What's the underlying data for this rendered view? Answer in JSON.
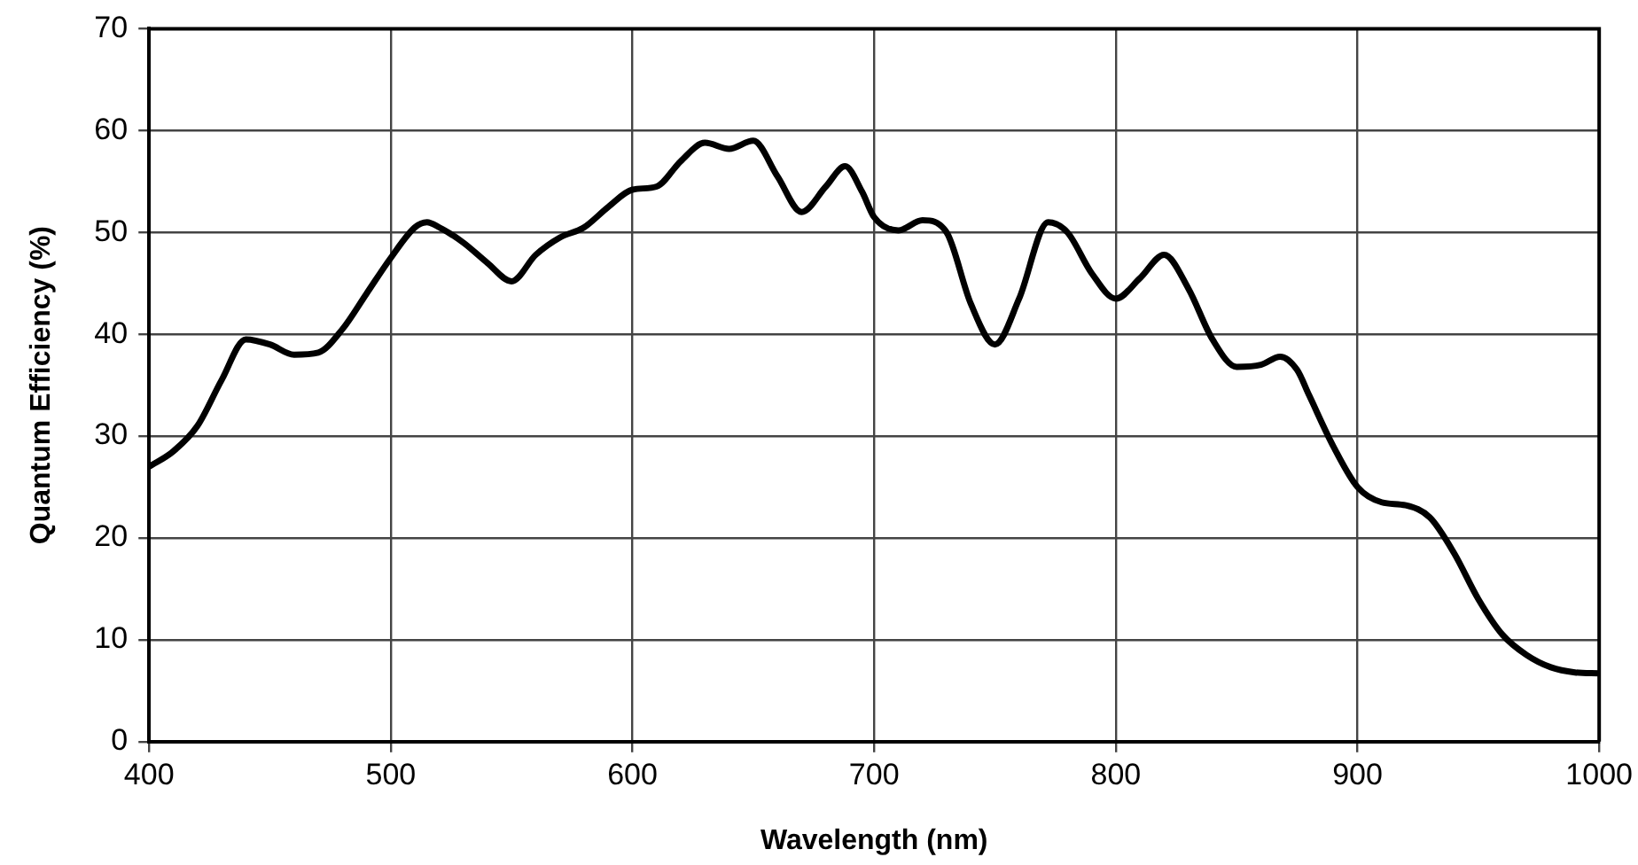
{
  "chart_data": {
    "type": "line",
    "xlabel": "Wavelength (nm)",
    "ylabel": "Quantum Efficiency (%)",
    "x": [
      400,
      410,
      420,
      430,
      440,
      450,
      460,
      470,
      480,
      490,
      500,
      510,
      515,
      520,
      530,
      540,
      550,
      560,
      570,
      580,
      590,
      600,
      610,
      620,
      630,
      640,
      650,
      660,
      670,
      680,
      688,
      695,
      700,
      710,
      720,
      730,
      740,
      750,
      760,
      772,
      780,
      790,
      800,
      810,
      820,
      830,
      840,
      850,
      860,
      868,
      875,
      880,
      890,
      900,
      910,
      920,
      930,
      940,
      950,
      960,
      970,
      980,
      990,
      1000
    ],
    "series": [
      {
        "color": "#000000",
        "values": [
          27,
          28.5,
          31,
          35.5,
          39.5,
          39,
          38,
          38.2,
          40.5,
          44,
          47.5,
          50.5,
          51,
          50.5,
          49,
          47,
          45.2,
          47.8,
          49.5,
          50.5,
          52.5,
          54.2,
          54.5,
          57,
          58.8,
          58.2,
          59,
          55.5,
          52,
          54.5,
          56.5,
          54,
          51.5,
          50.2,
          51.2,
          50,
          43,
          39,
          43.5,
          51,
          50,
          46,
          43.5,
          45.5,
          47.8,
          44.5,
          39.5,
          36.8,
          37,
          37.8,
          36.5,
          34,
          29,
          25,
          23.5,
          23.2,
          22,
          18.5,
          14,
          10.5,
          8.5,
          7.3,
          6.8,
          6.7
        ]
      }
    ],
    "xlim": [
      400,
      1000
    ],
    "xticks": [
      400,
      500,
      600,
      700,
      800,
      900,
      1000
    ],
    "ylim": [
      0,
      70
    ],
    "yticks": [
      0,
      10,
      20,
      30,
      40,
      50,
      60,
      70
    ],
    "grid": true,
    "legend": false,
    "marker": "none",
    "line_style": "solid"
  }
}
